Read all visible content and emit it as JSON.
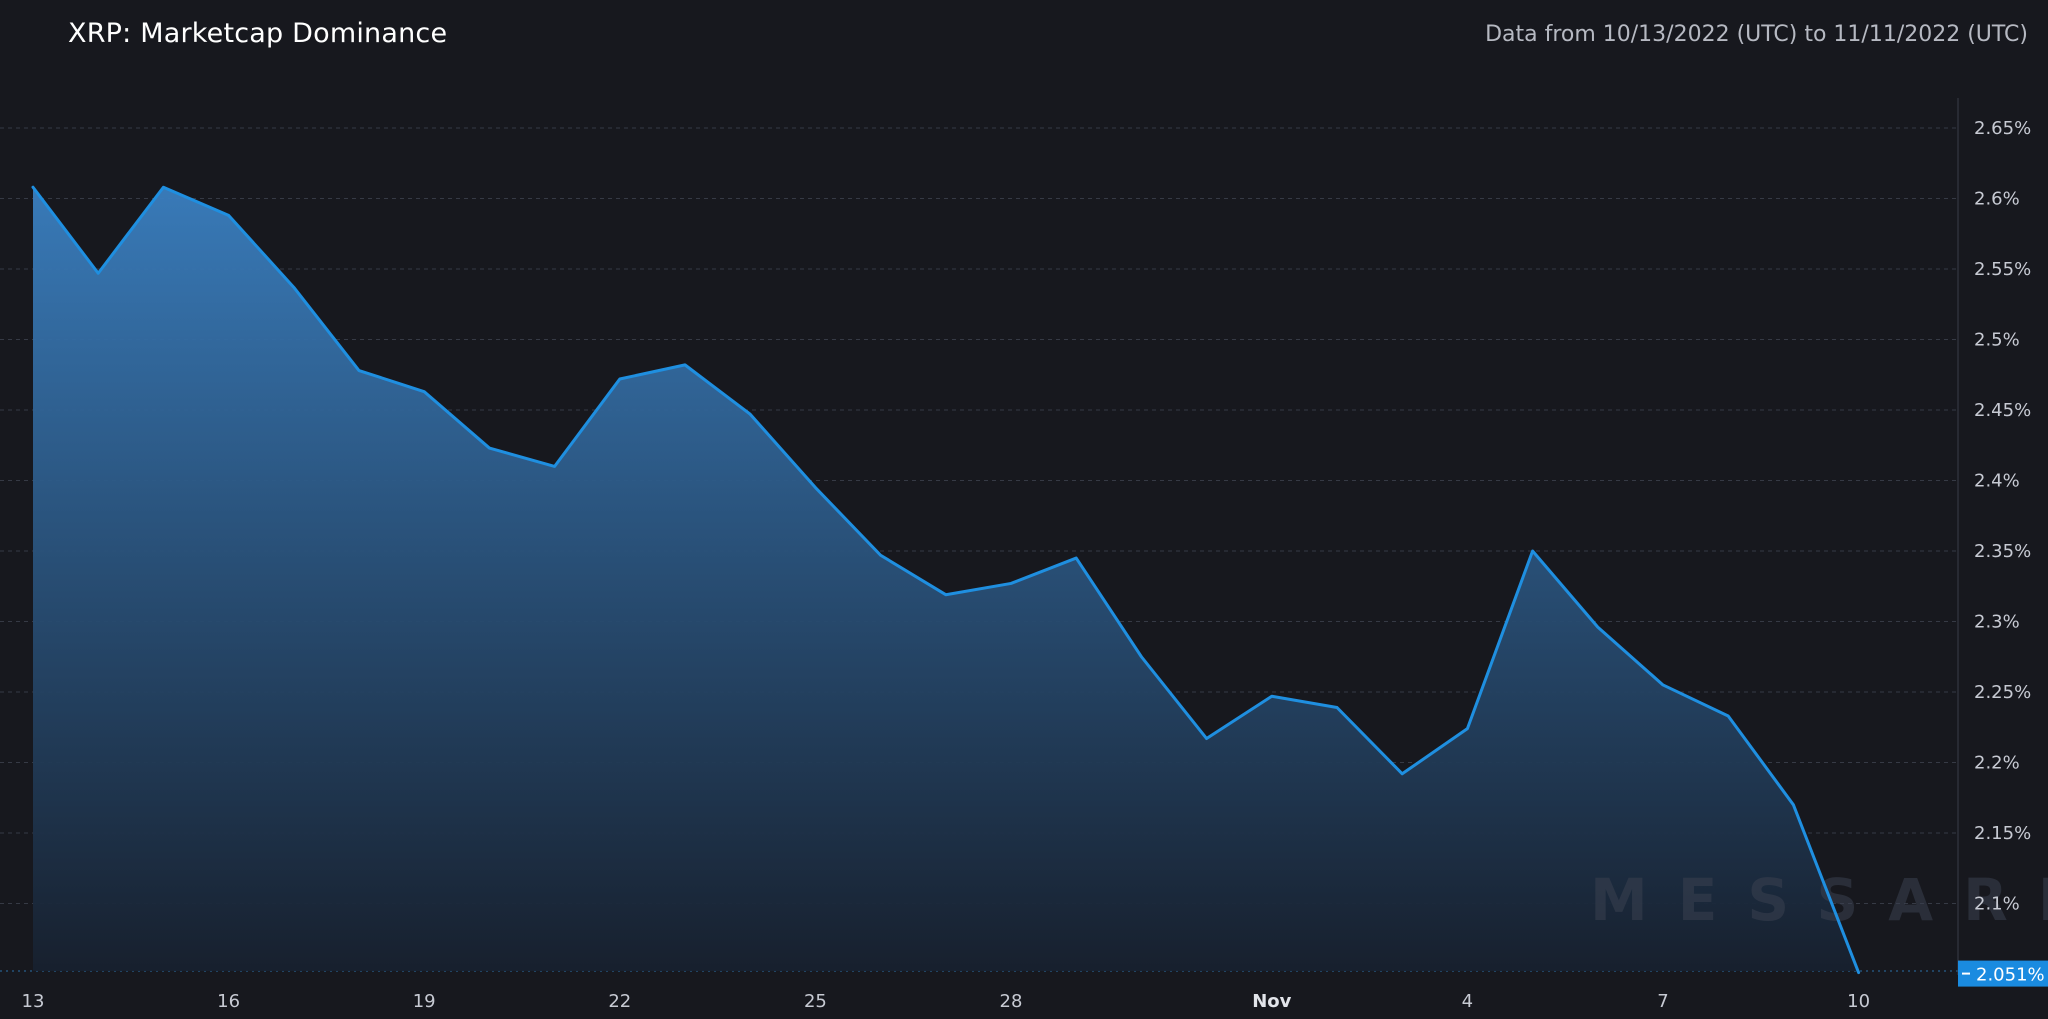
{
  "header": {
    "title": "XRP: Marketcap Dominance",
    "subtitle": "Data from 10/13/2022 (UTC) to 11/11/2022 (UTC)"
  },
  "watermark": "MESSARI",
  "colors": {
    "background": "#17181e",
    "line": "#1f8fe0",
    "fill_top": "#3a7fc0",
    "fill_bottom": "#17202e",
    "grid": "#363a45",
    "last_value_badge": "#1a8be0"
  },
  "chart_data": {
    "type": "area",
    "title": "XRP: Marketcap Dominance",
    "x": [
      "Oct 13",
      "Oct 14",
      "Oct 15",
      "Oct 16",
      "Oct 17",
      "Oct 18",
      "Oct 19",
      "Oct 20",
      "Oct 21",
      "Oct 22",
      "Oct 23",
      "Oct 24",
      "Oct 25",
      "Oct 26",
      "Oct 27",
      "Oct 28",
      "Oct 29",
      "Oct 30",
      "Oct 31",
      "Nov 1",
      "Nov 2",
      "Nov 3",
      "Nov 4",
      "Nov 5",
      "Nov 6",
      "Nov 7",
      "Nov 8",
      "Nov 9",
      "Nov 10"
    ],
    "series": [
      {
        "values": [
          2.608,
          2.547,
          2.608,
          2.588,
          2.537,
          2.478,
          2.463,
          2.423,
          2.41,
          2.472,
          2.482,
          2.447,
          2.395,
          2.347,
          2.319,
          2.327,
          2.345,
          2.275,
          2.217,
          2.247,
          2.239,
          2.192,
          2.224,
          2.35,
          2.296,
          2.255,
          2.233,
          2.17,
          2.051
        ]
      }
    ],
    "x_tick_labels": [
      "13",
      "16",
      "19",
      "22",
      "25",
      "28",
      "Nov",
      "4",
      "7",
      "10"
    ],
    "x_tick_indices": [
      0,
      3,
      6,
      9,
      12,
      15,
      19,
      22,
      25,
      28
    ],
    "y_ticks": [
      "2.1%",
      "2.15%",
      "2.2%",
      "2.25%",
      "2.3%",
      "2.35%",
      "2.4%",
      "2.45%",
      "2.5%",
      "2.55%",
      "2.6%",
      "2.65%"
    ],
    "y_tick_values": [
      2.1,
      2.15,
      2.2,
      2.25,
      2.3,
      2.35,
      2.4,
      2.45,
      2.5,
      2.55,
      2.6,
      2.65
    ],
    "ylim": [
      2.051,
      2.671
    ],
    "last_value_label": "2.051%",
    "grid": true,
    "legend": "none",
    "y_axis_position": "right"
  }
}
